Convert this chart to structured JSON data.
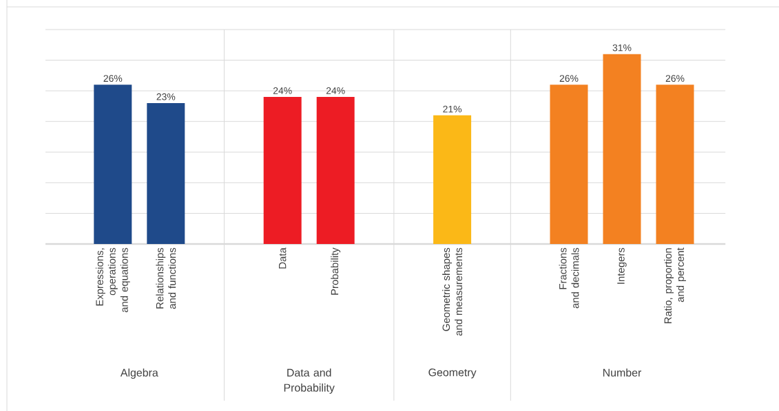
{
  "chart_data": {
    "type": "bar",
    "categories": [
      "Expressions, operations and equations",
      "Relationships and functions",
      "Data",
      "Probability",
      "Geometric shapes and measurements",
      "Fractions and decimals",
      "Integers",
      "Ratio, proportion and percent"
    ],
    "series": [
      {
        "color": "#1f4a8a",
        "values": [
          26,
          23,
          null,
          null,
          null,
          null,
          null,
          null
        ],
        "value_labels": [
          "26%",
          "23%",
          null,
          null,
          null,
          null,
          null,
          null
        ]
      },
      {
        "color": "#ed1c24",
        "values": [
          null,
          null,
          24,
          24,
          null,
          null,
          null,
          null
        ],
        "value_labels": [
          null,
          null,
          "24%",
          "24%",
          null,
          null,
          null,
          null
        ]
      },
      {
        "color": "#fbb817",
        "values": [
          null,
          null,
          null,
          null,
          21,
          null,
          null,
          null
        ],
        "value_labels": [
          null,
          null,
          null,
          null,
          "21%",
          null,
          null,
          null
        ]
      },
      {
        "color": "#f38121",
        "values": [
          null,
          null,
          null,
          null,
          null,
          26,
          31,
          26
        ],
        "value_labels": [
          null,
          null,
          null,
          null,
          null,
          "26%",
          "31%",
          "26%"
        ]
      }
    ],
    "annotations": [
      "Algebra",
      "Data and Probability",
      "Geometry",
      "Number"
    ],
    "ylim": [
      0,
      35
    ],
    "yticks": [
      {
        "value": 0,
        "label": null
      },
      {
        "value": 5,
        "label": null
      },
      {
        "value": 10,
        "label": null
      },
      {
        "value": 15,
        "label": null
      },
      {
        "value": 20,
        "label": null
      },
      {
        "value": 25,
        "label": null
      },
      {
        "value": 30,
        "label": null
      },
      {
        "value": 35,
        "label": null
      }
    ],
    "grid": "y",
    "tick_labels": "x"
  }
}
